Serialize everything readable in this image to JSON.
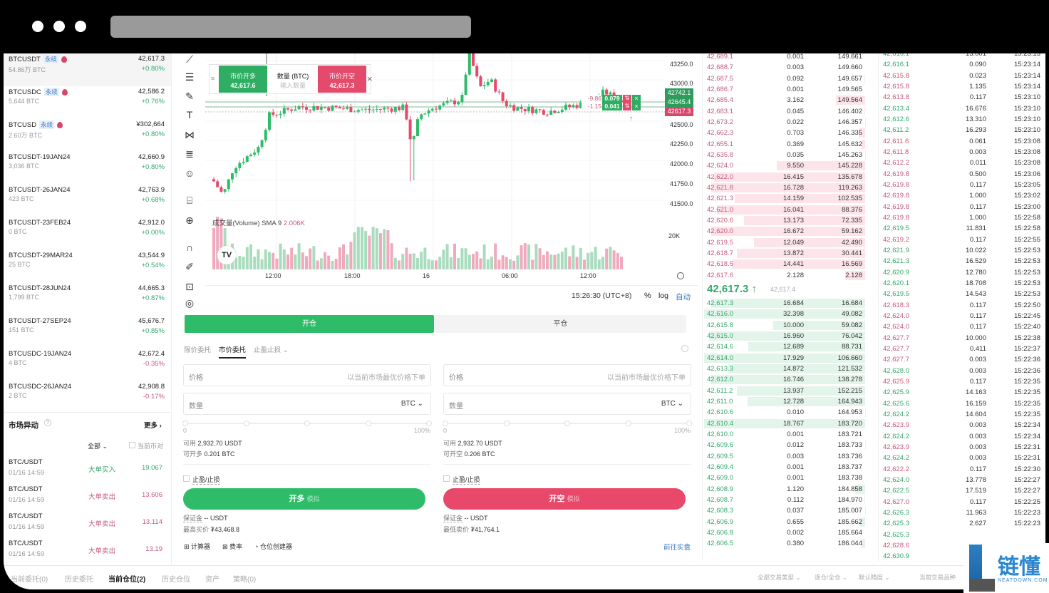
{
  "markets": [
    {
      "symbol": "BTCUSDT",
      "tag": "永续",
      "hot": true,
      "volume": "54.86万 BTC",
      "price": "42,617.3",
      "change": "+0.80%",
      "dir": "up"
    },
    {
      "symbol": "BTCUSDC",
      "tag": "永续",
      "hot": true,
      "volume": "5,644 BTC",
      "price": "42,586.2",
      "change": "+0.76%",
      "dir": "up"
    },
    {
      "symbol": "BTCUSD",
      "tag": "永续",
      "hot": true,
      "volume": "2.60万 BTC",
      "price": "¥302,664",
      "change": "+0.80%",
      "dir": "up"
    },
    {
      "symbol": "BTCUSDT-19JAN24",
      "volume": "3,036 BTC",
      "price": "42,660.9",
      "change": "+0.80%",
      "dir": "up"
    },
    {
      "symbol": "BTCUSDT-26JAN24",
      "volume": "423 BTC",
      "price": "42,763.9",
      "change": "+0.68%",
      "dir": "up"
    },
    {
      "symbol": "BTCUSDT-23FEB24",
      "volume": "0 BTC",
      "price": "42,912.0",
      "change": "+0.00%",
      "dir": "up"
    },
    {
      "symbol": "BTCUSDT-29MAR24",
      "volume": "25 BTC",
      "price": "43,544.9",
      "change": "+0.54%",
      "dir": "up"
    },
    {
      "symbol": "BTCUSDT-28JUN24",
      "volume": "1,799 BTC",
      "price": "44,665.3",
      "change": "+0.87%",
      "dir": "up"
    },
    {
      "symbol": "BTCUSDT-27SEP24",
      "volume": "151 BTC",
      "price": "45,676.7",
      "change": "+0.85%",
      "dir": "up"
    },
    {
      "symbol": "BTCUSDC-19JAN24",
      "volume": "4 BTC",
      "price": "42,672.4",
      "change": "-0.35%",
      "dir": "down"
    },
    {
      "symbol": "BTCUSDC-26JAN24",
      "volume": "2 BTC",
      "price": "42,908.8",
      "change": "-0.17%",
      "dir": "down"
    }
  ],
  "anomaly": {
    "title": "市场异动",
    "more": "更多 ›",
    "filter": "全部",
    "current_pair": "当前币对",
    "items": [
      {
        "pair": "BTC/USDT",
        "time": "01/16 14:59",
        "type": "大单买入",
        "value": "19.067",
        "dir": "up"
      },
      {
        "pair": "BTC/USDT",
        "time": "01/16 14:59",
        "type": "大单卖出",
        "value": "13.606",
        "dir": "down"
      },
      {
        "pair": "BTC/USDT",
        "time": "01/16 14:59",
        "type": "大单卖出",
        "value": "13.114",
        "dir": "down"
      },
      {
        "pair": "BTC/USDT",
        "time": "01/16 14:59",
        "type": "大单卖出",
        "value": "13.19",
        "dir": "down"
      }
    ]
  },
  "toolbar_icons": [
    "trend-line-icon",
    "horizontal-lines-icon",
    "brush-icon",
    "text-icon",
    "pattern-icon",
    "fib-icon",
    "emoji-icon",
    "ruler-icon",
    "zoom-in-icon",
    "magnet-icon",
    "lock-pencil-icon",
    "unlock-icon",
    "eye-icon"
  ],
  "chart": {
    "quick_order": {
      "buy_label": "市价开多",
      "buy_price": "42,617.6",
      "qty_label": "数量 (BTC)",
      "qty_placeholder": "输入数量",
      "sell_label": "市价开空",
      "sell_price": "42,617.3"
    },
    "price_ticks": [
      "43250.0",
      "43000.0",
      "42500.0",
      "42250.0",
      "42000.0",
      "41750.0",
      "41500.0"
    ],
    "price_tags": [
      {
        "value": "42742.1",
        "color": "#2e9d5c"
      },
      {
        "value": "42645.4",
        "color": "#2e9d5c"
      },
      {
        "value": "42617.3",
        "color": "#d9466c"
      }
    ],
    "positions": [
      {
        "pnl": "-9.86",
        "qty": "0.079"
      },
      {
        "pnl": "-1.15",
        "qty": "0.041"
      }
    ],
    "volume_label": "成交量(Volume) SMA 9",
    "volume_value": "2.006K",
    "volume_tick": "20K",
    "time_ticks": [
      "12:00",
      "18:00",
      "16",
      "06:00",
      "12:00"
    ],
    "clock": "15:26:30 (UTC+8)",
    "pct": "%",
    "log": "log",
    "auto": "自动"
  },
  "form": {
    "tabs": [
      "开仓",
      "平仓"
    ],
    "order_types": [
      "限价委托",
      "市价委托",
      "止盈止损"
    ],
    "long": {
      "price_label": "价格",
      "price_placeholder": "以当前市场最优价格下单",
      "qty_label": "数量",
      "unit": "BTC",
      "min": "0",
      "max": "100%",
      "avail_label": "可用",
      "avail": "2,932.70 USDT",
      "open_label": "可开多",
      "open": "0.201 BTC",
      "tpsl": "止盈/止损",
      "button": "开多",
      "button_tag": "模拟",
      "margin_label": "保证金",
      "margin": "-- USDT",
      "limit_label": "最高买价",
      "limit": "₮43,468.8"
    },
    "short": {
      "price_label": "价格",
      "price_placeholder": "以当前市场最优价格下单",
      "qty_label": "数量",
      "unit": "BTC",
      "min": "0",
      "max": "100%",
      "avail_label": "可用",
      "avail": "2,932.70 USDT",
      "open_label": "可开空",
      "open": "0.206 BTC",
      "tpsl": "止盈/止损",
      "button": "开空",
      "button_tag": "模拟",
      "margin_label": "保证金",
      "margin": "-- USDT",
      "limit_label": "最低卖价",
      "limit": "₮41,764.1"
    },
    "tools": [
      "计算器",
      "费率",
      "仓位创建器"
    ],
    "live_link": "前往实盘"
  },
  "orderbook": {
    "asks": [
      [
        "42,689.1",
        "0.001",
        "149.661"
      ],
      [
        "42,688.7",
        "0.003",
        "149.660"
      ],
      [
        "42,687.5",
        "0.092",
        "149.657"
      ],
      [
        "42,686.7",
        "0.001",
        "149.565"
      ],
      [
        "42,685.4",
        "3.162",
        "149.564"
      ],
      [
        "42,683.1",
        "0.045",
        "146.402"
      ],
      [
        "42,673.2",
        "0.022",
        "146.357"
      ],
      [
        "42,662.3",
        "0.703",
        "146.335"
      ],
      [
        "42,655.1",
        "0.369",
        "145.632"
      ],
      [
        "42,635.8",
        "0.035",
        "145.263"
      ],
      [
        "42,624.0",
        "9.550",
        "145.228"
      ],
      [
        "42,622.0",
        "16.415",
        "135.678"
      ],
      [
        "42,621.8",
        "16.728",
        "119.263"
      ],
      [
        "42,621.3",
        "14.159",
        "102.535"
      ],
      [
        "42,621.0",
        "16.041",
        "88.376"
      ],
      [
        "42,620.6",
        "13.173",
        "72.335"
      ],
      [
        "42,620.0",
        "16.672",
        "59.162"
      ],
      [
        "42,619.5",
        "12.049",
        "42.490"
      ],
      [
        "42,618.7",
        "13.872",
        "30.441"
      ],
      [
        "42,618.5",
        "14.441",
        "16.569"
      ],
      [
        "42,617.6",
        "2.128",
        "2.128"
      ]
    ],
    "last_price": "42,617.3 ↑",
    "mark_price": "42,617.4",
    "bids": [
      [
        "42,617.3",
        "16.684",
        "16.684"
      ],
      [
        "42,616.0",
        "32.398",
        "49.082"
      ],
      [
        "42,615.8",
        "10.000",
        "59.082"
      ],
      [
        "42,615.0",
        "16.960",
        "76.042"
      ],
      [
        "42,614.6",
        "12.689",
        "88.731"
      ],
      [
        "42,614.0",
        "17.929",
        "106.660"
      ],
      [
        "42,613.3",
        "14.872",
        "121.532"
      ],
      [
        "42,612.0",
        "16.746",
        "138.278"
      ],
      [
        "42,611.2",
        "13.937",
        "152.215"
      ],
      [
        "42,611.0",
        "12.728",
        "164.943"
      ],
      [
        "42,610.6",
        "0.010",
        "164.953"
      ],
      [
        "42,610.4",
        "18.767",
        "183.720"
      ],
      [
        "42,610.0",
        "0.001",
        "183.721"
      ],
      [
        "42,609.6",
        "0.012",
        "183.733"
      ],
      [
        "42,609.5",
        "0.003",
        "183.736"
      ],
      [
        "42,609.4",
        "0.001",
        "183.737"
      ],
      [
        "42,609.0",
        "0.001",
        "183.738"
      ],
      [
        "42,608.9",
        "1.120",
        "184.858"
      ],
      [
        "42,608.7",
        "0.112",
        "184.970"
      ],
      [
        "42,608.3",
        "0.037",
        "185.007"
      ],
      [
        "42,606.9",
        "0.655",
        "185.662"
      ],
      [
        "42,606.8",
        "0.002",
        "185.664"
      ],
      [
        "42,606.5",
        "0.380",
        "186.044"
      ]
    ]
  },
  "trades": [
    [
      "42,616.1",
      "13.001",
      "15:23:13",
      "up"
    ],
    [
      "42,616.1",
      "0.090",
      "15:23:14",
      "up"
    ],
    [
      "42,615.8",
      "0.023",
      "15:23:14",
      "down"
    ],
    [
      "42,615.8",
      "1.135",
      "15:23:14",
      "down"
    ],
    [
      "42,613.8",
      "0.117",
      "15:23:10",
      "down"
    ],
    [
      "42,613.4",
      "16.676",
      "15:23:10",
      "up"
    ],
    [
      "42,612.6",
      "13.310",
      "15:23:10",
      "up"
    ],
    [
      "42,611.2",
      "16.293",
      "15:23:10",
      "up"
    ],
    [
      "42,611.6",
      "0.061",
      "15:23:08",
      "down"
    ],
    [
      "42,611.8",
      "0.003",
      "15:23:08",
      "down"
    ],
    [
      "42,612.2",
      "0.011",
      "15:23:08",
      "down"
    ],
    [
      "42,619.8",
      "0.500",
      "15:23:06",
      "down"
    ],
    [
      "42,619.8",
      "0.117",
      "15:23:05",
      "down"
    ],
    [
      "42,619.8",
      "1.000",
      "15:23:02",
      "down"
    ],
    [
      "42,619.8",
      "0.117",
      "15:23:00",
      "down"
    ],
    [
      "42,619.8",
      "1.000",
      "15:22:58",
      "down"
    ],
    [
      "42,619.5",
      "11.831",
      "15:22:58",
      "up"
    ],
    [
      "42,619.2",
      "0.117",
      "15:22:55",
      "down"
    ],
    [
      "42,621.9",
      "10.022",
      "15:22:53",
      "up"
    ],
    [
      "42,621.3",
      "16.529",
      "15:22:53",
      "up"
    ],
    [
      "42,620.9",
      "12.780",
      "15:22:53",
      "up"
    ],
    [
      "42,620.1",
      "18.708",
      "15:22:53",
      "up"
    ],
    [
      "42,619.5",
      "14.543",
      "15:22:53",
      "up"
    ],
    [
      "42,618.3",
      "0.117",
      "15:22:50",
      "down"
    ],
    [
      "42,624.0",
      "0.117",
      "15:22:45",
      "down"
    ],
    [
      "42,624.0",
      "0.117",
      "15:22:40",
      "down"
    ],
    [
      "42,627.7",
      "10.000",
      "15:22:38",
      "down"
    ],
    [
      "42,627.7",
      "0.411",
      "15:22:37",
      "down"
    ],
    [
      "42,627.7",
      "0.003",
      "15:22:36",
      "down"
    ],
    [
      "42,628.0",
      "0.003",
      "15:22:36",
      "up"
    ],
    [
      "42,625.9",
      "0.117",
      "15:22:35",
      "down"
    ],
    [
      "42,625.9",
      "14.163",
      "15:22:35",
      "up"
    ],
    [
      "42,625.6",
      "16.159",
      "15:22:35",
      "up"
    ],
    [
      "42,624.2",
      "14.604",
      "15:22:35",
      "up"
    ],
    [
      "42,623.9",
      "0.003",
      "15:22:34",
      "down"
    ],
    [
      "42,624.2",
      "0.003",
      "15:22:34",
      "up"
    ],
    [
      "42,623.9",
      "0.003",
      "15:22:31",
      "down"
    ],
    [
      "42,624.2",
      "0.003",
      "15:22:31",
      "up"
    ],
    [
      "42,622.2",
      "0.117",
      "15:22:30",
      "down"
    ],
    [
      "42,624.0",
      "13.778",
      "15:22:27",
      "up"
    ],
    [
      "42,622.5",
      "17.519",
      "15:22:27",
      "up"
    ],
    [
      "42,627.0",
      "0.117",
      "15:22:25",
      "down"
    ],
    [
      "42,626.3",
      "11.963",
      "15:22:23",
      "up"
    ],
    [
      "42,625.3",
      "2.627",
      "15:22:23",
      "up"
    ],
    [
      "42,625.3",
      "",
      "",
      "up"
    ],
    [
      "42,628.6",
      "",
      "",
      "down"
    ],
    [
      "42,630.9",
      "",
      "",
      "up"
    ]
  ],
  "bottom_tabs": [
    "当前委托(0)",
    "历史委托",
    "当前仓位(2)",
    "历史仓位",
    "资产",
    "策略(0)"
  ],
  "bottom_filters": [
    "全部交易类型",
    "逐仓/全仓",
    "默认精度",
    "当前交易品种"
  ],
  "watermark": {
    "brand": "链懂",
    "domain": "NEATDOWN.COM"
  },
  "colors": {
    "up": "#2fbc68",
    "down": "#e8486a",
    "up_text": "#35a86b",
    "down_text": "#c65a7c"
  }
}
